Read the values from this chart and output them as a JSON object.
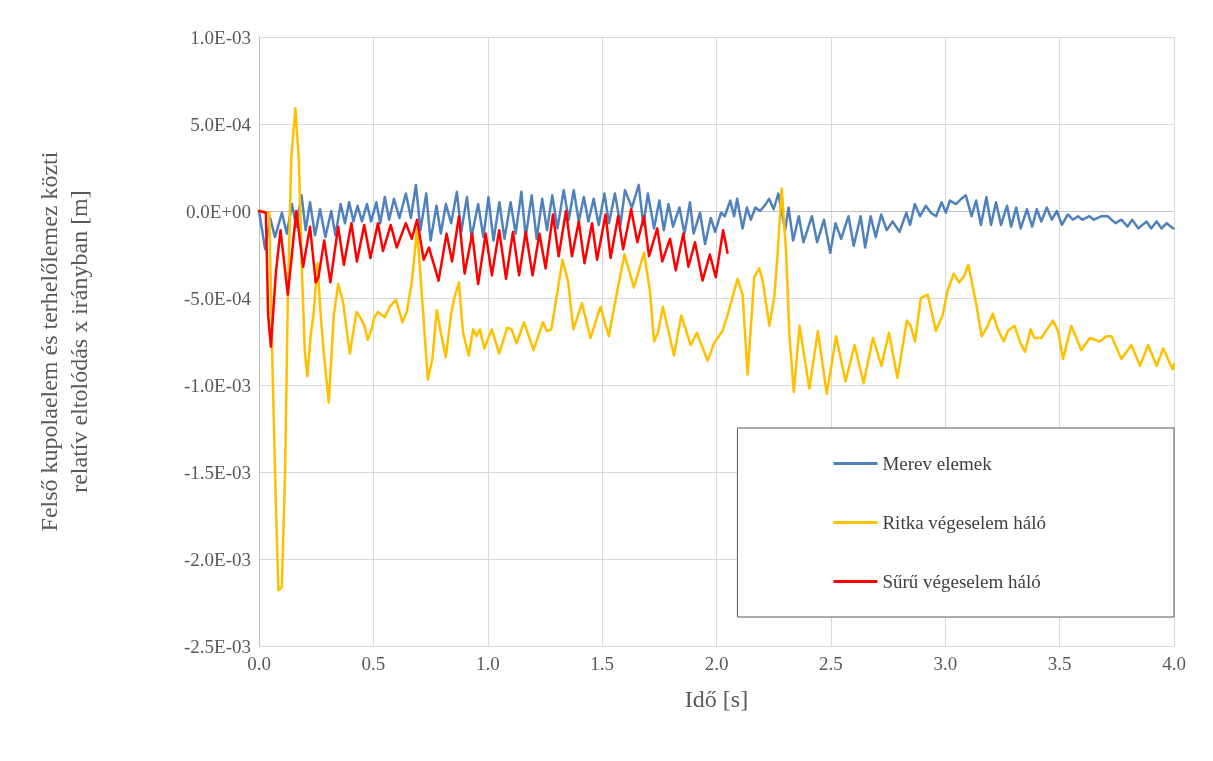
{
  "chart_data": {
    "type": "line",
    "xlabel": "Idő [s]",
    "ylabel": "Felső kupolaelem és terhelőlemez közti\nrelatív eltolódás x irányban [m]",
    "xlim": [
      0,
      4
    ],
    "xticks": [
      {
        "value": 0,
        "label": "0.0"
      },
      {
        "value": 0.5,
        "label": "0.5"
      },
      {
        "value": 1,
        "label": "1.0"
      },
      {
        "value": 1.5,
        "label": "1.5"
      },
      {
        "value": 2,
        "label": "2.0"
      },
      {
        "value": 2.5,
        "label": "2.5"
      },
      {
        "value": 3,
        "label": "3.0"
      },
      {
        "value": 3.5,
        "label": "3.5"
      },
      {
        "value": 4,
        "label": "4.0"
      }
    ],
    "ylim": [
      -0.0025,
      0.001
    ],
    "yticks": [
      {
        "value": -0.0025,
        "label": "-2.5E-03"
      },
      {
        "value": -0.002,
        "label": "-2.0E-03"
      },
      {
        "value": -0.0015,
        "label": "-1.5E-03"
      },
      {
        "value": -0.001,
        "label": "-1.0E-03"
      },
      {
        "value": -0.0005,
        "label": "-5.0E-04"
      },
      {
        "value": 0,
        "label": "0.0E+00"
      },
      {
        "value": 0.0005,
        "label": "5.0E-04"
      },
      {
        "value": 0.001,
        "label": "1.0E-03"
      }
    ],
    "grid": true,
    "legend": "bottom right",
    "marker": "none",
    "line_style": "solid",
    "series": [
      {
        "name": "Merev elemek",
        "color": "#4f81bd",
        "x": [
          0,
          0.027,
          0.049,
          0.07,
          0.1,
          0.122,
          0.144,
          0.163,
          0.186,
          0.204,
          0.223,
          0.245,
          0.267,
          0.29,
          0.316,
          0.334,
          0.357,
          0.376,
          0.394,
          0.413,
          0.431,
          0.45,
          0.472,
          0.49,
          0.513,
          0.53,
          0.55,
          0.569,
          0.59,
          0.614,
          0.642,
          0.664,
          0.686,
          0.706,
          0.731,
          0.75,
          0.776,
          0.795,
          0.817,
          0.84,
          0.865,
          0.884,
          0.909,
          0.929,
          0.958,
          0.981,
          1.003,
          1.025,
          1.051,
          1.073,
          1.1,
          1.122,
          1.147,
          1.166,
          1.192,
          1.214,
          1.238,
          1.259,
          1.282,
          1.305,
          1.332,
          1.354,
          1.376,
          1.398,
          1.42,
          1.44,
          1.463,
          1.485,
          1.51,
          1.53,
          1.556,
          1.58,
          1.6,
          1.63,
          1.66,
          1.68,
          1.7,
          1.727,
          1.75,
          1.77,
          1.79,
          1.81,
          1.838,
          1.86,
          1.884,
          1.9,
          1.928,
          1.95,
          1.975,
          1.994,
          2.02,
          2.036,
          2.06,
          2.077,
          2.09,
          2.114,
          2.133,
          2.15,
          2.17,
          2.19,
          2.21,
          2.23,
          2.25,
          2.27,
          2.3,
          2.315,
          2.335,
          2.36,
          2.38,
          2.417,
          2.44,
          2.47,
          2.497,
          2.52,
          2.545,
          2.577,
          2.6,
          2.63,
          2.65,
          2.674,
          2.696,
          2.72,
          2.744,
          2.77,
          2.8,
          2.83,
          2.846,
          2.867,
          2.89,
          2.915,
          2.937,
          2.96,
          2.984,
          3.003,
          3.02,
          3.047,
          3.07,
          3.09,
          3.115,
          3.135,
          3.156,
          3.18,
          3.2,
          3.222,
          3.244,
          3.27,
          3.288,
          3.31,
          3.33,
          3.357,
          3.38,
          3.4,
          3.42,
          3.444,
          3.466,
          3.488,
          3.51,
          3.536,
          3.558,
          3.58,
          3.6,
          3.63,
          3.65,
          3.683,
          3.71,
          3.744,
          3.77,
          3.797,
          3.817,
          3.844,
          3.88,
          3.9,
          3.924,
          3.946,
          3.968,
          3.997
        ],
        "values": [
          0,
          -0.00022,
          -4e-05,
          -0.00015,
          -1e-05,
          -0.00013,
          4e-05,
          -9e-05,
          9e-05,
          -0.00011,
          5e-05,
          -0.00014,
          1e-05,
          -0.00015,
          0,
          -0.00014,
          4e-05,
          -7e-05,
          5e-05,
          -6e-05,
          3e-05,
          -6e-05,
          4e-05,
          -6e-05,
          5e-05,
          -7e-05,
          8e-05,
          -5e-05,
          7e-05,
          -4e-05,
          0.0001,
          -4e-05,
          0.00015,
          -0.00011,
          0.0001,
          -0.00017,
          3e-05,
          -0.00013,
          4e-05,
          -7e-05,
          0.00011,
          -0.00012,
          8e-05,
          -0.00015,
          4e-05,
          -0.00015,
          8e-05,
          -0.00017,
          5e-05,
          -0.00016,
          5e-05,
          -0.00013,
          0.00011,
          -0.00015,
          9e-05,
          -0.00016,
          7e-05,
          -0.00011,
          9e-05,
          -0.0001,
          0.00012,
          -5e-05,
          0.00012,
          -6e-05,
          8e-05,
          -6e-05,
          7e-05,
          -8e-05,
          0.0001,
          -7e-05,
          0.0001,
          -8e-05,
          0.00012,
          2e-05,
          0.00015,
          -8e-05,
          0.0001,
          -0.0001,
          6e-05,
          -0.00011,
          4e-05,
          -9e-05,
          2e-05,
          -0.00013,
          5e-05,
          -0.00013,
          -1e-05,
          -0.00019,
          -4e-05,
          -0.00012,
          -1e-05,
          -3e-05,
          6e-05,
          -3e-05,
          7e-05,
          -0.0001,
          2e-05,
          -5e-05,
          2e-05,
          0,
          3e-05,
          7e-05,
          1e-05,
          0.0001,
          -0.00011,
          2e-05,
          -0.00017,
          -3e-05,
          -0.00018,
          -3e-05,
          -0.00018,
          -5e-05,
          -0.00024,
          -7e-05,
          -0.00016,
          -3e-05,
          -0.0002,
          -3e-05,
          -0.00021,
          -3e-05,
          -0.00015,
          -2e-05,
          -0.00011,
          -6e-05,
          -0.00012,
          -1e-05,
          -8e-05,
          4e-05,
          -3e-05,
          3e-05,
          -1e-05,
          -3e-05,
          5e-05,
          -1e-05,
          6e-05,
          4e-05,
          7e-05,
          9e-05,
          -3e-05,
          6e-05,
          -8e-05,
          8e-05,
          -8e-05,
          5e-05,
          -8e-05,
          3e-05,
          -9e-05,
          2e-05,
          -0.0001,
          1e-05,
          -9e-05,
          1e-05,
          -6e-05,
          2e-05,
          -5e-05,
          0,
          -8e-05,
          -2e-05,
          -5e-05,
          -3e-05,
          -5e-05,
          -3e-05,
          -5e-05,
          -3e-05,
          -3e-05,
          -7e-05,
          -5e-05,
          -9e-05,
          -5e-05,
          -0.0001,
          -6e-05,
          -0.0001,
          -6e-05,
          -0.0001,
          -7e-05,
          -0.0001
        ]
      },
      {
        "name": "Ritka végeselem háló",
        "color": "#ffc000",
        "x": [
          0,
          0.045,
          0.059,
          0.074,
          0.085,
          0.1,
          0.114,
          0.126,
          0.141,
          0.159,
          0.174,
          0.189,
          0.2,
          0.211,
          0.227,
          0.238,
          0.256,
          0.267,
          0.282,
          0.305,
          0.327,
          0.346,
          0.367,
          0.397,
          0.426,
          0.446,
          0.461,
          0.475,
          0.49,
          0.505,
          0.52,
          0.55,
          0.572,
          0.599,
          0.627,
          0.646,
          0.669,
          0.691,
          0.713,
          0.738,
          0.758,
          0.777,
          0.795,
          0.817,
          0.84,
          0.854,
          0.874,
          0.892,
          0.917,
          0.936,
          0.951,
          0.966,
          0.985,
          1.018,
          1.05,
          1.085,
          1.104,
          1.126,
          1.159,
          1.2,
          1.241,
          1.259,
          1.278,
          1.327,
          1.352,
          1.374,
          1.412,
          1.449,
          1.493,
          1.529,
          1.566,
          1.598,
          1.639,
          1.683,
          1.709,
          1.727,
          1.744,
          1.766,
          1.814,
          1.846,
          1.887,
          1.914,
          1.961,
          1.99,
          2.026,
          2.048,
          2.092,
          2.114,
          2.136,
          2.165,
          2.187,
          2.202,
          2.231,
          2.253,
          2.268,
          2.285,
          2.304,
          2.319,
          2.338,
          2.363,
          2.406,
          2.443,
          2.482,
          2.523,
          2.564,
          2.604,
          2.643,
          2.684,
          2.721,
          2.754,
          2.791,
          2.832,
          2.849,
          2.868,
          2.893,
          2.923,
          2.959,
          2.988,
          3.01,
          3.037,
          3.061,
          3.08,
          3.101,
          3.135,
          3.159,
          3.186,
          3.208,
          3.23,
          3.256,
          3.273,
          3.303,
          3.329,
          3.349,
          3.373,
          3.39,
          3.42,
          3.471,
          3.493,
          3.515,
          3.551,
          3.595,
          3.632,
          3.675,
          3.705,
          3.727,
          3.77,
          3.814,
          3.851,
          3.887,
          3.924,
          3.953,
          3.994,
          4.0
        ],
        "values": [
          0,
          -1e-05,
          -0.0009,
          -0.0017,
          -0.00218,
          -0.00216,
          -0.0015,
          -0.0005,
          0.0003,
          0.00059,
          0.0003,
          -0.0004,
          -0.0008,
          -0.00095,
          -0.0007,
          -0.0006,
          -0.0003,
          -0.00055,
          -0.0008,
          -0.0011,
          -0.0006,
          -0.00042,
          -0.00052,
          -0.00082,
          -0.00058,
          -0.00062,
          -0.00066,
          -0.00074,
          -0.00069,
          -0.00061,
          -0.00058,
          -0.00061,
          -0.00055,
          -0.00051,
          -0.00064,
          -0.00058,
          -0.0004,
          -0.0001,
          -0.0005,
          -0.00097,
          -0.00085,
          -0.00057,
          -0.0007,
          -0.00084,
          -0.00059,
          -0.0005,
          -0.00041,
          -0.0007,
          -0.00083,
          -0.00068,
          -0.00072,
          -0.00068,
          -0.00079,
          -0.00068,
          -0.00082,
          -0.00067,
          -0.00068,
          -0.00076,
          -0.00064,
          -0.0008,
          -0.00064,
          -0.00069,
          -0.00068,
          -0.00028,
          -0.00041,
          -0.00068,
          -0.00053,
          -0.00073,
          -0.00055,
          -0.00072,
          -0.00046,
          -0.00025,
          -0.00044,
          -0.00024,
          -0.00046,
          -0.00075,
          -0.0007,
          -0.00055,
          -0.00083,
          -0.0006,
          -0.00077,
          -0.0007,
          -0.00086,
          -0.00076,
          -0.00069,
          -0.0006,
          -0.00039,
          -0.00048,
          -0.00094,
          -0.00038,
          -0.00033,
          -0.0004,
          -0.00066,
          -0.00049,
          -0.00023,
          0.00013,
          -0.00023,
          -0.00072,
          -0.00104,
          -0.00066,
          -0.00102,
          -0.00069,
          -0.00105,
          -0.00072,
          -0.00098,
          -0.00077,
          -0.00099,
          -0.00073,
          -0.00089,
          -0.0007,
          -0.00096,
          -0.00063,
          -0.00066,
          -0.00075,
          -0.0005,
          -0.00048,
          -0.00069,
          -0.0006,
          -0.00046,
          -0.00036,
          -0.00041,
          -0.00038,
          -0.00031,
          -0.00053,
          -0.00072,
          -0.00066,
          -0.00059,
          -0.00068,
          -0.00075,
          -0.00069,
          -0.00066,
          -0.00076,
          -0.00081,
          -0.00068,
          -0.00073,
          -0.00073,
          -0.00063,
          -0.00069,
          -0.00085,
          -0.00066,
          -0.0008,
          -0.00073,
          -0.00075,
          -0.00072,
          -0.00072,
          -0.00085,
          -0.00077,
          -0.00089,
          -0.00077,
          -0.00089,
          -0.00079,
          -0.00091,
          -0.00088
        ]
      },
      {
        "name": "Sűrű végeselem háló",
        "color": "#ff0000",
        "x": [
          0,
          0.03,
          0.04,
          0.052,
          0.074,
          0.094,
          0.126,
          0.163,
          0.193,
          0.223,
          0.248,
          0.26,
          0.285,
          0.312,
          0.346,
          0.371,
          0.404,
          0.428,
          0.46,
          0.487,
          0.52,
          0.542,
          0.576,
          0.602,
          0.642,
          0.668,
          0.691,
          0.72,
          0.743,
          0.785,
          0.82,
          0.844,
          0.874,
          0.899,
          0.932,
          0.958,
          0.991,
          1.018,
          1.05,
          1.08,
          1.11,
          1.137,
          1.166,
          1.196,
          1.226,
          1.253,
          1.285,
          1.31,
          1.342,
          1.368,
          1.398,
          1.423,
          1.456,
          1.478,
          1.515,
          1.537,
          1.57,
          1.592,
          1.627,
          1.654,
          1.683,
          1.705,
          1.741,
          1.763,
          1.797,
          1.822,
          1.855,
          1.877,
          1.906,
          1.939,
          1.971,
          1.997,
          2.029,
          2.048
        ],
        "values": [
          0,
          -1e-05,
          -0.0006,
          -0.00078,
          -0.00035,
          -0.00011,
          -0.00048,
          0,
          -0.00032,
          -9e-05,
          -0.00041,
          -0.00038,
          -0.00017,
          -0.00041,
          -9e-05,
          -0.00031,
          -7e-05,
          -0.00029,
          -8e-05,
          -0.00027,
          -7e-05,
          -0.00023,
          -8e-05,
          -0.00021,
          -7e-05,
          -0.00016,
          -5e-05,
          -0.00028,
          -0.00021,
          -0.0004,
          -0.00013,
          -0.00029,
          -3e-05,
          -0.00036,
          -0.00013,
          -0.00042,
          -0.00013,
          -0.00037,
          -0.00011,
          -0.00039,
          -0.00012,
          -0.00037,
          -0.00012,
          -0.00037,
          -0.00013,
          -0.00033,
          -2e-05,
          -0.00026,
          0,
          -0.00026,
          -6e-05,
          -0.0003,
          -7e-05,
          -0.00028,
          -2e-05,
          -0.00027,
          -3e-05,
          -0.00022,
          1e-05,
          -0.00018,
          -3e-05,
          -0.00026,
          -0.0001,
          -0.00029,
          -0.00016,
          -0.00034,
          -0.00013,
          -0.00032,
          -0.00018,
          -0.0004,
          -0.00025,
          -0.00038,
          -0.00011,
          -0.00024
        ]
      }
    ]
  }
}
